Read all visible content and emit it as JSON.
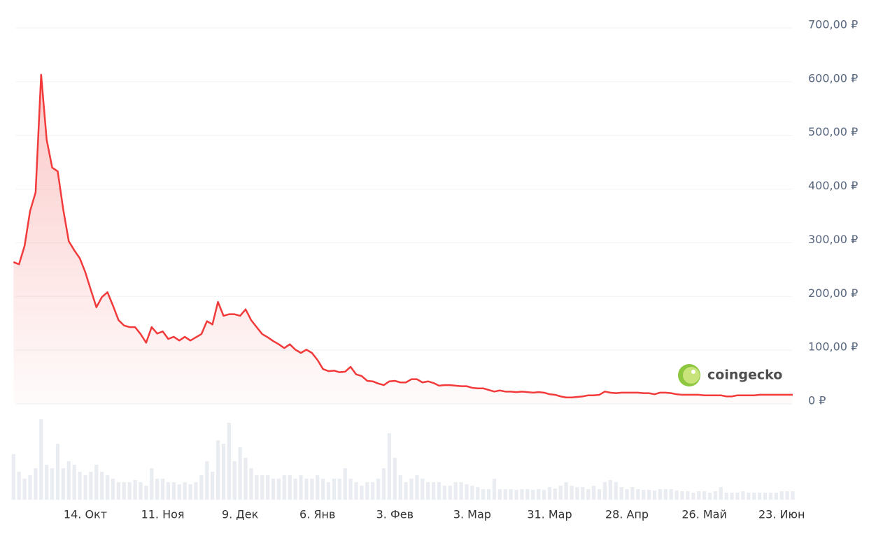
{
  "chart_data": {
    "type": "line",
    "watermark": "coingecko",
    "categories": [
      null,
      null,
      null,
      null,
      null,
      null,
      null,
      null,
      null,
      null,
      null,
      null,
      null,
      "14. Окт",
      null,
      null,
      null,
      null,
      null,
      null,
      null,
      null,
      null,
      null,
      null,
      null,
      null,
      "11. Ноя",
      null,
      null,
      null,
      null,
      null,
      null,
      null,
      null,
      null,
      null,
      null,
      null,
      null,
      "9. Дек",
      null,
      null,
      null,
      null,
      null,
      null,
      null,
      null,
      null,
      null,
      null,
      null,
      null,
      "6. Янв",
      null,
      null,
      null,
      null,
      null,
      null,
      null,
      null,
      null,
      null,
      null,
      null,
      null,
      "3. Фев",
      null,
      null,
      null,
      null,
      null,
      null,
      null,
      null,
      null,
      null,
      null,
      null,
      null,
      "3. Мар",
      null,
      null,
      null,
      null,
      null,
      null,
      null,
      null,
      null,
      null,
      null,
      null,
      null,
      "31. Мар",
      null,
      null,
      null,
      null,
      null,
      null,
      null,
      null,
      null,
      null,
      null,
      null,
      null,
      "28. Апр",
      null,
      null,
      null,
      null,
      null,
      null,
      null,
      null,
      null,
      null,
      null,
      null,
      null,
      "26. Май",
      null,
      null,
      null,
      null,
      null,
      null,
      null,
      null,
      null,
      null,
      null,
      null,
      null,
      "23. Июн",
      null,
      null
    ],
    "series": [
      {
        "color": "#f23a3a",
        "values": [
          264,
          260,
          294,
          359,
          394,
          613,
          492,
          440,
          433,
          362,
          303,
          286,
          271,
          245,
          212,
          180,
          199,
          208,
          183,
          156,
          146,
          143,
          143,
          130,
          114,
          143,
          131,
          135,
          121,
          125,
          118,
          125,
          118,
          124,
          130,
          154,
          148,
          190,
          164,
          167,
          167,
          164,
          176,
          156,
          143,
          130,
          124,
          117,
          111,
          104,
          111,
          101,
          95,
          101,
          95,
          82,
          65,
          61,
          62,
          59,
          60,
          69,
          55,
          52,
          43,
          42,
          38,
          35,
          42,
          43,
          40,
          40,
          46,
          46,
          40,
          42,
          39,
          34,
          35,
          35,
          34,
          33,
          33,
          30,
          29,
          29,
          26,
          23,
          25,
          23,
          23,
          22,
          23,
          22,
          21,
          22,
          21,
          18,
          17,
          14,
          12,
          12,
          13,
          14,
          16,
          16,
          17,
          23,
          21,
          20,
          21,
          21,
          21,
          21,
          20,
          20,
          18,
          21,
          21,
          20,
          18,
          17,
          17,
          17,
          17,
          16,
          16,
          16,
          16,
          14,
          14,
          16,
          16,
          16,
          16,
          17,
          17,
          17,
          17,
          17,
          17,
          17
        ]
      },
      {
        "color": "#e9ecf0",
        "axis": "y2",
        "values": [
          65,
          40,
          30,
          35,
          45,
          115,
          50,
          45,
          80,
          45,
          55,
          50,
          40,
          35,
          40,
          50,
          40,
          35,
          30,
          25,
          25,
          25,
          28,
          25,
          20,
          45,
          30,
          30,
          25,
          25,
          22,
          25,
          22,
          25,
          35,
          55,
          40,
          85,
          80,
          110,
          55,
          75,
          60,
          45,
          35,
          35,
          35,
          30,
          30,
          35,
          35,
          30,
          35,
          30,
          30,
          35,
          30,
          25,
          30,
          30,
          45,
          30,
          25,
          20,
          25,
          25,
          30,
          45,
          95,
          60,
          35,
          25,
          30,
          35,
          30,
          25,
          25,
          25,
          20,
          20,
          25,
          25,
          22,
          20,
          18,
          15,
          15,
          30,
          15,
          15,
          15,
          14,
          15,
          15,
          14,
          15,
          14,
          18,
          16,
          20,
          25,
          20,
          18,
          18,
          15,
          20,
          15,
          25,
          28,
          25,
          18,
          15,
          18,
          15,
          14,
          14,
          13,
          15,
          15,
          15,
          13,
          12,
          12,
          10,
          12,
          12,
          10,
          12,
          18,
          10,
          10,
          10,
          12,
          10,
          10,
          10,
          10,
          10,
          10,
          12,
          12,
          12
        ]
      }
    ],
    "ylim": [
      0,
      700
    ],
    "yticks": [
      {
        "value": 0,
        "label": "0 ₽"
      },
      {
        "value": 100,
        "label": "100,00 ₽"
      },
      {
        "value": 200,
        "label": "200,00 ₽"
      },
      {
        "value": 300,
        "label": "300,00 ₽"
      },
      {
        "value": 400,
        "label": "400,00 ₽"
      },
      {
        "value": 500,
        "label": "500,00 ₽"
      },
      {
        "value": 600,
        "label": "600,00 ₽"
      },
      {
        "value": 700,
        "label": "700,00 ₽"
      }
    ],
    "y2lim": [
      0,
      120
    ],
    "grid": true
  }
}
